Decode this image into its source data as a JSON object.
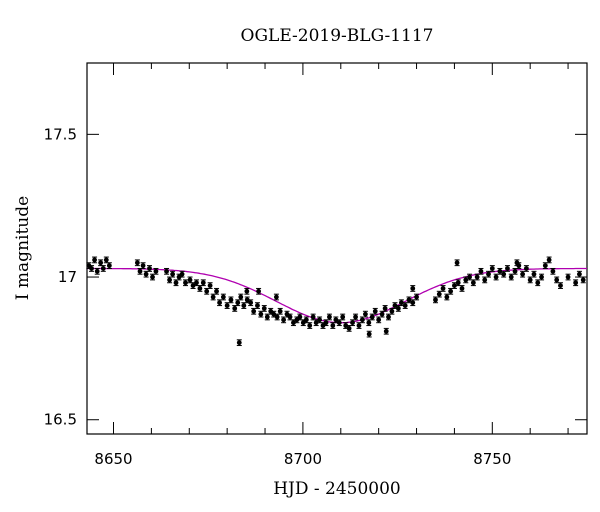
{
  "chart_data": {
    "type": "scatter",
    "title": "OGLE-2019-BLG-1117",
    "xlabel": "HJD - 2450000",
    "ylabel": "I magnitude",
    "xlim": [
      8643,
      8775
    ],
    "ylim": [
      17.75,
      16.45
    ],
    "y_inverted": true,
    "grid": false,
    "x_ticks": [
      8650,
      8700,
      8750
    ],
    "x_tick_labels": [
      "8650",
      "8700",
      "8750"
    ],
    "y_ticks": [
      16.5,
      17,
      17.5
    ],
    "y_tick_labels": [
      "16.5",
      "17",
      "17.5"
    ],
    "colors": {
      "data": "#000000",
      "model": "#b000b0"
    },
    "series": [
      {
        "type": "scatter_errorbar",
        "x": [
          8643.5,
          8644.2,
          8645.0,
          8645.7,
          8646.6,
          8647.3,
          8648.1,
          8648.9,
          8656.3,
          8657.0,
          8657.8,
          8658.6,
          8659.5,
          8660.3,
          8661.2,
          8664.0,
          8664.8,
          8665.6,
          8666.5,
          8667.3,
          8668.1,
          8669.0,
          8670.2,
          8671.0,
          8671.9,
          8672.8,
          8673.7,
          8674.6,
          8675.5,
          8676.3,
          8677.2,
          8678.0,
          8679.0,
          8680.0,
          8681.0,
          8682.0,
          8682.8,
          8683.6,
          8684.4,
          8685.3,
          8686.2,
          8687.0,
          8688.0,
          8688.9,
          8689.8,
          8690.6,
          8691.5,
          8692.3,
          8693.2,
          8694.0,
          8694.9,
          8695.8,
          8696.6,
          8697.5,
          8698.4,
          8699.2,
          8700.1,
          8700.9,
          8701.8,
          8702.7,
          8703.5,
          8704.4,
          8705.3,
          8706.1,
          8707.0,
          8707.9,
          8708.7,
          8709.6,
          8710.5,
          8711.3,
          8712.2,
          8713.1,
          8713.9,
          8714.8,
          8715.7,
          8716.5,
          8717.4,
          8718.3,
          8719.1,
          8720.0,
          8720.9,
          8721.7,
          8722.6,
          8723.5,
          8724.3,
          8725.2,
          8726.0,
          8727.0,
          8728.0,
          8729.0,
          8730.0,
          8735.0,
          8736.0,
          8737.0,
          8738.0,
          8739.0,
          8740.0,
          8741.0,
          8742.0,
          8743.0,
          8744.0,
          8745.0,
          8746.0,
          8747.0,
          8748.0,
          8749.0,
          8750.0,
          8751.0,
          8752.0,
          8753.0,
          8754.0,
          8755.0,
          8756.0,
          8757.0,
          8758.0,
          8759.0,
          8760.0,
          8761.0,
          8762.0,
          8763.0,
          8764.0,
          8765.0,
          8766.0,
          8767.0,
          8770.0,
          8772.0,
          8773.0,
          8774.0,
          8683.2,
          8685.2,
          8688.3,
          8693.0,
          8717.5,
          8722.0,
          8729.0,
          8740.7,
          8756.5,
          8768.0
        ],
        "y": [
          17.04,
          17.03,
          17.06,
          17.02,
          17.05,
          17.03,
          17.06,
          17.04,
          17.05,
          17.02,
          17.04,
          17.01,
          17.03,
          17.0,
          17.02,
          17.02,
          16.99,
          17.01,
          16.98,
          17.0,
          17.01,
          16.98,
          16.99,
          16.97,
          16.98,
          16.96,
          16.98,
          16.95,
          16.97,
          16.93,
          16.95,
          16.91,
          16.93,
          16.9,
          16.92,
          16.89,
          16.91,
          16.93,
          16.9,
          16.92,
          16.91,
          16.88,
          16.9,
          16.87,
          16.89,
          16.86,
          16.88,
          16.87,
          16.86,
          16.88,
          16.85,
          16.87,
          16.86,
          16.84,
          16.85,
          16.86,
          16.84,
          16.85,
          16.83,
          16.86,
          16.84,
          16.85,
          16.83,
          16.84,
          16.86,
          16.83,
          16.85,
          16.84,
          16.86,
          16.83,
          16.82,
          16.84,
          16.86,
          16.83,
          16.85,
          16.87,
          16.84,
          16.86,
          16.88,
          16.85,
          16.87,
          16.89,
          16.86,
          16.88,
          16.9,
          16.89,
          16.91,
          16.9,
          16.92,
          16.91,
          16.93,
          16.92,
          16.94,
          16.96,
          16.93,
          16.95,
          16.97,
          16.98,
          16.96,
          16.99,
          17.0,
          16.98,
          17.0,
          17.02,
          16.99,
          17.01,
          17.03,
          17.0,
          17.02,
          17.01,
          17.03,
          17.0,
          17.02,
          17.04,
          17.01,
          17.03,
          16.99,
          17.01,
          16.98,
          17.0,
          17.04,
          17.06,
          17.02,
          16.99,
          17.0,
          16.98,
          17.01,
          16.99,
          16.77,
          16.95,
          16.95,
          16.93,
          16.8,
          16.81,
          16.96,
          17.05,
          17.05,
          16.97
        ],
        "y_err": 0.01
      },
      {
        "type": "line",
        "name": "",
        "model": "gaussian_peak",
        "t0": 8710,
        "baseline": 17.03,
        "amplitude": 0.19,
        "width": 17,
        "x_range": [
          8643,
          8775
        ]
      }
    ]
  }
}
